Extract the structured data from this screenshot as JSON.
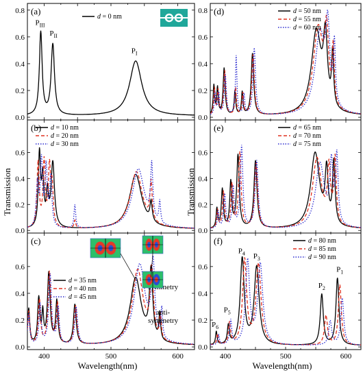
{
  "figure": {
    "xlabel": "Wavelength(nm)",
    "ylabel": "Transmission"
  },
  "legend_prefix": "d",
  "legend_unit": "nm",
  "colors": {
    "black": "#000000",
    "red": "#e0301e",
    "blue": "#2a2ad0"
  },
  "chart_data": [
    {
      "type": "line",
      "panel": "(a)",
      "xlim": [
        375,
        625
      ],
      "ylim": [
        -0.02,
        0.85
      ],
      "yticks": [
        0.0,
        0.2,
        0.4,
        0.6,
        0.8
      ],
      "xticks": [
        400,
        500,
        600
      ],
      "show_xticklabels": false,
      "show_yticklabels": true,
      "legend": "top-center",
      "series": [
        {
          "name": "= 0 nm",
          "color": "black",
          "dash": "solid",
          "peaks": [
            [
              395,
              0.62,
              2.5
            ],
            [
              413,
              0.53,
              3
            ],
            [
              537,
              0.41,
              11
            ]
          ]
        }
      ],
      "annotations": [
        {
          "text": "P",
          "sub": "III",
          "x": 394,
          "y": 0.69
        },
        {
          "text": "P",
          "sub": "II",
          "x": 414,
          "y": 0.61
        },
        {
          "text": "P",
          "sub": "I",
          "x": 535,
          "y": 0.48
        }
      ],
      "inset": "double-ring-icon"
    },
    {
      "type": "line",
      "panel": "(b)",
      "xlim": [
        375,
        625
      ],
      "ylim": [
        -0.02,
        0.85
      ],
      "yticks": [
        0.0,
        0.2,
        0.4,
        0.6
      ],
      "xticks": [
        400,
        500,
        600
      ],
      "show_xticklabels": false,
      "show_yticklabels": true,
      "legend": "top-left",
      "series": [
        {
          "name": "= 10 nm",
          "color": "black",
          "dash": "solid",
          "peaks": [
            [
              393,
              0.56,
              2
            ],
            [
              398,
              0.36,
              2
            ],
            [
              405,
              0.25,
              2
            ],
            [
              413,
              0.5,
              3
            ],
            [
              537,
              0.42,
              11
            ],
            [
              560,
              0.15,
              2
            ]
          ]
        },
        {
          "name": "= 20 nm",
          "color": "red",
          "dash": "dash",
          "peaks": [
            [
              391,
              0.5,
              2
            ],
            [
              400,
              0.5,
              2
            ],
            [
              408,
              0.44,
              2
            ],
            [
              412,
              0.3,
              2
            ],
            [
              446,
              0.06,
              1.5
            ],
            [
              538,
              0.44,
              11
            ],
            [
              560,
              0.3,
              2
            ]
          ]
        },
        {
          "name": "= 30 nm",
          "color": "blue",
          "dash": "dot",
          "peaks": [
            [
              390,
              0.33,
              2
            ],
            [
              396,
              0.5,
              2
            ],
            [
              403,
              0.45,
              2
            ],
            [
              410,
              0.38,
              2
            ],
            [
              446,
              0.18,
              1.5
            ],
            [
              541,
              0.46,
              11
            ],
            [
              561,
              0.42,
              2
            ],
            [
              573,
              0.17,
              1.5
            ]
          ]
        }
      ]
    },
    {
      "type": "line",
      "panel": "(c)",
      "xlim": [
        375,
        625
      ],
      "ylim": [
        -0.02,
        0.85
      ],
      "yticks": [
        0.0,
        0.2,
        0.4,
        0.6
      ],
      "xticks": [
        400,
        500,
        600
      ],
      "show_xticklabels": true,
      "show_yticklabels": true,
      "legend": "middle-left",
      "series": [
        {
          "name": "= 35 nm",
          "color": "black",
          "dash": "solid",
          "peaks": [
            [
              377,
              0.27,
              1.8
            ],
            [
              392,
              0.34,
              2
            ],
            [
              398,
              0.22,
              1.5
            ],
            [
              407,
              0.53,
              2.5
            ],
            [
              419,
              0.32,
              2
            ],
            [
              446,
              0.3,
              2.5
            ],
            [
              537,
              0.5,
              10
            ],
            [
              560,
              0.52,
              3
            ],
            [
              573,
              0.2,
              1.5
            ]
          ]
        },
        {
          "name": "= 40 nm",
          "color": "red",
          "dash": "dash",
          "peaks": [
            [
              377,
              0.25,
              1.8
            ],
            [
              393,
              0.33,
              2
            ],
            [
              408,
              0.54,
              2.5
            ],
            [
              420,
              0.3,
              2
            ],
            [
              447,
              0.29,
              2.5
            ],
            [
              540,
              0.56,
              10
            ],
            [
              561,
              0.5,
              3
            ],
            [
              574,
              0.18,
              1.5
            ]
          ]
        },
        {
          "name": "= 45 nm",
          "color": "blue",
          "dash": "dot",
          "peaks": [
            [
              377,
              0.23,
              1.8
            ],
            [
              394,
              0.3,
              2
            ],
            [
              409,
              0.52,
              2.5
            ],
            [
              421,
              0.27,
              2
            ],
            [
              448,
              0.28,
              2.5
            ],
            [
              543,
              0.6,
              10
            ],
            [
              563,
              0.55,
              3
            ],
            [
              576,
              0.22,
              1.5
            ]
          ]
        }
      ],
      "annotations": [
        {
          "text": "symmetry",
          "x": 578,
          "y": 0.43
        },
        {
          "text": "anti-",
          "x": 578,
          "y": 0.24
        },
        {
          "text": "symmetry",
          "x": 578,
          "y": 0.18
        }
      ],
      "insets": [
        "mode-profile-a",
        "mode-profile-b",
        "mode-profile-c"
      ]
    },
    {
      "type": "line",
      "panel": "(d)",
      "xlim": [
        375,
        625
      ],
      "ylim": [
        -0.02,
        0.85
      ],
      "yticks": [
        0.0,
        0.2,
        0.4,
        0.6,
        0.8
      ],
      "xticks": [
        400,
        500,
        600
      ],
      "show_xticklabels": false,
      "show_yticklabels": true,
      "legend": "top-center",
      "series": [
        {
          "name": "= 50 nm",
          "color": "black",
          "dash": "solid",
          "peaks": [
            [
              381,
              0.22,
              1.5
            ],
            [
              387,
              0.2,
              1.5
            ],
            [
              398,
              0.35,
              2
            ],
            [
              416,
              0.18,
              1.5
            ],
            [
              428,
              0.17,
              1.5
            ],
            [
              445,
              0.46,
              2.5
            ],
            [
              551,
              0.62,
              10
            ],
            [
              566,
              0.5,
              4
            ],
            [
              578,
              0.4,
              2
            ]
          ]
        },
        {
          "name": "= 55 nm",
          "color": "red",
          "dash": "dash",
          "peaks": [
            [
              382,
              0.2,
              1.5
            ],
            [
              388,
              0.18,
              1.5
            ],
            [
              399,
              0.33,
              2
            ],
            [
              417,
              0.2,
              1.5
            ],
            [
              429,
              0.16,
              1.5
            ],
            [
              446,
              0.45,
              2.5
            ],
            [
              554,
              0.64,
              10
            ],
            [
              568,
              0.52,
              4
            ],
            [
              579,
              0.42,
              2
            ]
          ]
        },
        {
          "name": "= 60 nm",
          "color": "blue",
          "dash": "dot",
          "peaks": [
            [
              383,
              0.17,
              1.5
            ],
            [
              389,
              0.16,
              1.5
            ],
            [
              400,
              0.3,
              2
            ],
            [
              418,
              0.44,
              1.5
            ],
            [
              431,
              0.15,
              1.5
            ],
            [
              448,
              0.5,
              2.5
            ],
            [
              557,
              0.6,
              10
            ],
            [
              570,
              0.55,
              4
            ],
            [
              581,
              0.45,
              2
            ]
          ]
        }
      ]
    },
    {
      "type": "line",
      "panel": "(e)",
      "xlim": [
        375,
        625
      ],
      "ylim": [
        -0.02,
        0.85
      ],
      "yticks": [
        0.0,
        0.2,
        0.4,
        0.6
      ],
      "xticks": [
        400,
        500,
        600
      ],
      "show_xticklabels": false,
      "show_yticklabels": true,
      "legend": "top-center",
      "series": [
        {
          "name": "= 65 nm",
          "color": "black",
          "dash": "solid",
          "peaks": [
            [
              386,
              0.15,
              1.5
            ],
            [
              395,
              0.3,
              2
            ],
            [
              409,
              0.35,
              2
            ],
            [
              421,
              0.56,
              2.5
            ],
            [
              450,
              0.52,
              3
            ],
            [
              549,
              0.58,
              9
            ],
            [
              568,
              0.4,
              3
            ],
            [
              580,
              0.48,
              2.5
            ]
          ]
        },
        {
          "name": "= 70 nm",
          "color": "red",
          "dash": "dash",
          "peaks": [
            [
              387,
              0.14,
              1.5
            ],
            [
              397,
              0.28,
              2
            ],
            [
              411,
              0.33,
              2
            ],
            [
              424,
              0.58,
              2.5
            ],
            [
              451,
              0.5,
              3
            ],
            [
              552,
              0.54,
              9
            ],
            [
              572,
              0.42,
              3
            ],
            [
              582,
              0.5,
              2.5
            ]
          ]
        },
        {
          "name": "= 75 nm",
          "color": "blue",
          "dash": "dot",
          "peaks": [
            [
              388,
              0.13,
              1.5
            ],
            [
              399,
              0.26,
              2
            ],
            [
              413,
              0.31,
              2
            ],
            [
              427,
              0.63,
              2.5
            ],
            [
              452,
              0.52,
              3
            ],
            [
              557,
              0.5,
              9
            ],
            [
              576,
              0.45,
              3
            ],
            [
              585,
              0.52,
              2.5
            ]
          ]
        }
      ]
    },
    {
      "type": "line",
      "panel": "(f)",
      "xlim": [
        375,
        625
      ],
      "ylim": [
        -0.02,
        0.85
      ],
      "yticks": [
        0.0,
        0.2,
        0.4,
        0.6
      ],
      "xticks": [
        400,
        500,
        600
      ],
      "show_xticklabels": true,
      "show_yticklabels": true,
      "legend": "top-right",
      "series": [
        {
          "name": "= 80 nm",
          "color": "black",
          "dash": "solid",
          "peaks": [
            [
              385,
              0.1,
              1.5
            ],
            [
              405,
              0.14,
              2
            ],
            [
              428,
              0.64,
              4
            ],
            [
              452,
              0.58,
              5
            ],
            [
              560,
              0.38,
              3
            ],
            [
              586,
              0.5,
              3
            ]
          ]
        },
        {
          "name": "= 85 nm",
          "color": "red",
          "dash": "dash",
          "peaks": [
            [
              387,
              0.08,
              1.5
            ],
            [
              407,
              0.16,
              2
            ],
            [
              432,
              0.63,
              4
            ],
            [
              455,
              0.6,
              5
            ],
            [
              567,
              0.22,
              3
            ],
            [
              590,
              0.45,
              3
            ]
          ]
        },
        {
          "name": "= 90 nm",
          "color": "blue",
          "dash": "dot",
          "peaks": [
            [
              389,
              0.07,
              1.5
            ],
            [
              409,
              0.18,
              2
            ],
            [
              437,
              0.62,
              4
            ],
            [
              458,
              0.6,
              5
            ],
            [
              574,
              0.18,
              3
            ],
            [
              594,
              0.35,
              3
            ]
          ]
        }
      ],
      "annotations": [
        {
          "text": "P",
          "sub": "6",
          "x": 383,
          "y": 0.15
        },
        {
          "text": "P",
          "sub": "5",
          "x": 403,
          "y": 0.26
        },
        {
          "text": "P",
          "sub": "4",
          "x": 427,
          "y": 0.7
        },
        {
          "text": "P",
          "sub": "3",
          "x": 452,
          "y": 0.66
        },
        {
          "text": "P",
          "sub": "2",
          "x": 560,
          "y": 0.44
        },
        {
          "text": "P",
          "sub": "1",
          "x": 590,
          "y": 0.56
        }
      ]
    }
  ]
}
